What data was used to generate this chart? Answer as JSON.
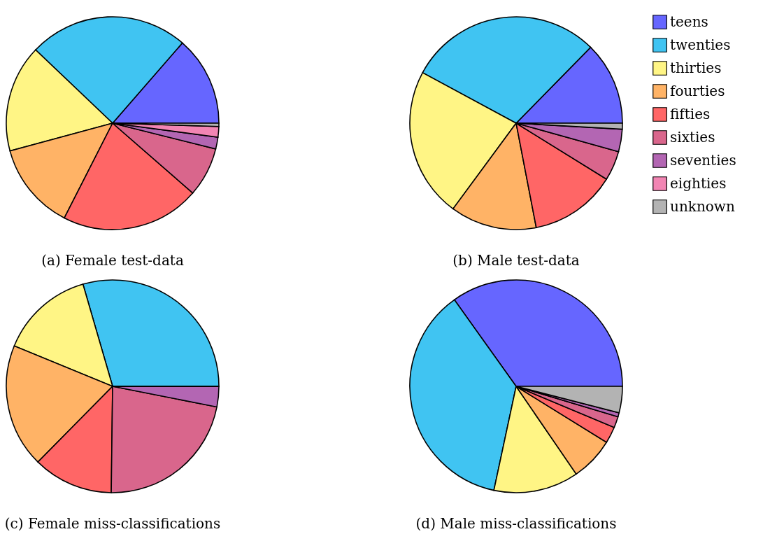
{
  "chart_data": [
    {
      "type": "pie",
      "title": "(a) Female test-data",
      "categories": [
        null,
        null,
        null,
        null,
        null,
        null,
        null,
        null,
        null
      ],
      "values": [
        13.6,
        24.3,
        16.3,
        13.3,
        21.1,
        7.5,
        1.8,
        1.6,
        0.5
      ],
      "colors": [
        "#6666ff",
        "#40c4f2",
        "#fff585",
        "#ffb366",
        "#ff6666",
        "#d9668c",
        "#b366b3",
        "#f285b3",
        "#b3b3b3"
      ]
    },
    {
      "type": "pie",
      "title": "(b) Male test-data",
      "legend": "right",
      "categories": [
        "teens",
        "twenties",
        "thirties",
        "fourties",
        "fifties",
        "sixties",
        "seventies",
        "eighties",
        "unknown"
      ],
      "values": [
        12.6,
        29.4,
        22.7,
        13.1,
        13.1,
        4.5,
        3.4,
        null,
        0.9
      ],
      "colors": [
        "#6666ff",
        "#40c4f2",
        "#fff585",
        "#ffb366",
        "#ff6666",
        "#d9668c",
        "#b366b3",
        "#f285b3",
        "#b3b3b3"
      ]
    },
    {
      "type": "pie",
      "title": "(c) Female miss-classifications",
      "categories": [
        null,
        null,
        null,
        null,
        null,
        null,
        null,
        null,
        null
      ],
      "values": [
        0,
        29.5,
        14.3,
        18.8,
        12.2,
        22.1,
        3.1,
        0,
        0
      ],
      "colors": [
        "#6666ff",
        "#40c4f2",
        "#fff585",
        "#ffb366",
        "#ff6666",
        "#d9668c",
        "#b366b3",
        "#f285b3",
        "#b3b3b3"
      ]
    },
    {
      "type": "pie",
      "title": "(d) Male miss-classifications",
      "categories": [
        null,
        null,
        null,
        null,
        null,
        null,
        null,
        null,
        null
      ],
      "values": [
        34.8,
        36.7,
        12.9,
        6.6,
        2.5,
        1.7,
        0.6,
        null,
        4.0
      ],
      "colors": [
        "#6666ff",
        "#40c4f2",
        "#fff585",
        "#ffb366",
        "#ff6666",
        "#d9668c",
        "#b366b3",
        "#f285b3",
        "#b3b3b3"
      ]
    }
  ]
}
